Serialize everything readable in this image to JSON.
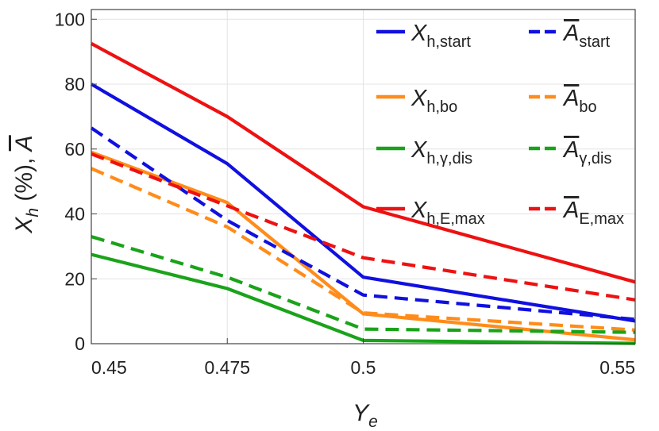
{
  "chart_data": {
    "type": "line",
    "xlabel": "Y",
    "xlabel_sub": "e",
    "ylabel": "X",
    "ylabel_sub": "h",
    "ylabel_rest": " (%), ",
    "ylabel_tail": "A",
    "xlim": [
      0.45,
      0.55
    ],
    "ylim": [
      0,
      103
    ],
    "x": [
      0.45,
      0.475,
      0.5,
      0.55
    ],
    "x_ticks": [
      0.45,
      0.475,
      0.5,
      0.55
    ],
    "x_tick_labels": [
      "0.45",
      "0.475",
      "0.5",
      "0.55"
    ],
    "y_ticks": [
      0,
      20,
      40,
      60,
      80,
      100
    ],
    "y_tick_labels": [
      "0",
      "20",
      "40",
      "60",
      "80",
      "100"
    ],
    "grid": true,
    "legend_position": "top-right",
    "series": [
      {
        "name": "X",
        "sub": "h,start",
        "overline": false,
        "color": "#1010e0",
        "dash": false,
        "values": [
          80,
          55.5,
          20.5,
          7
        ]
      },
      {
        "name": "X",
        "sub": "h,bo",
        "overline": false,
        "color": "#ff8c1a",
        "dash": false,
        "values": [
          59,
          43.5,
          9.2,
          1.2
        ]
      },
      {
        "name": "X",
        "sub": "h,γ,dis",
        "overline": false,
        "color": "#1aa31a",
        "dash": false,
        "values": [
          27.5,
          17,
          1,
          0.1
        ]
      },
      {
        "name": "X",
        "sub": "h,E,max",
        "overline": false,
        "color": "#ee1111",
        "dash": false,
        "values": [
          92.5,
          70,
          42.2,
          19
        ]
      },
      {
        "name": "A",
        "sub": "start",
        "overline": true,
        "color": "#1010e0",
        "dash": true,
        "values": [
          66.5,
          38,
          15,
          7.5
        ]
      },
      {
        "name": "A",
        "sub": "bo",
        "overline": true,
        "color": "#ff8c1a",
        "dash": true,
        "values": [
          54,
          36,
          9.5,
          4.2
        ]
      },
      {
        "name": "A",
        "sub": "γ,dis",
        "overline": true,
        "color": "#1aa31a",
        "dash": true,
        "values": [
          33,
          20.5,
          4.5,
          3.5
        ]
      },
      {
        "name": "A",
        "sub": "E,max",
        "overline": true,
        "color": "#ee1111",
        "dash": true,
        "values": [
          58.5,
          42.5,
          26.5,
          13.5
        ]
      }
    ]
  }
}
